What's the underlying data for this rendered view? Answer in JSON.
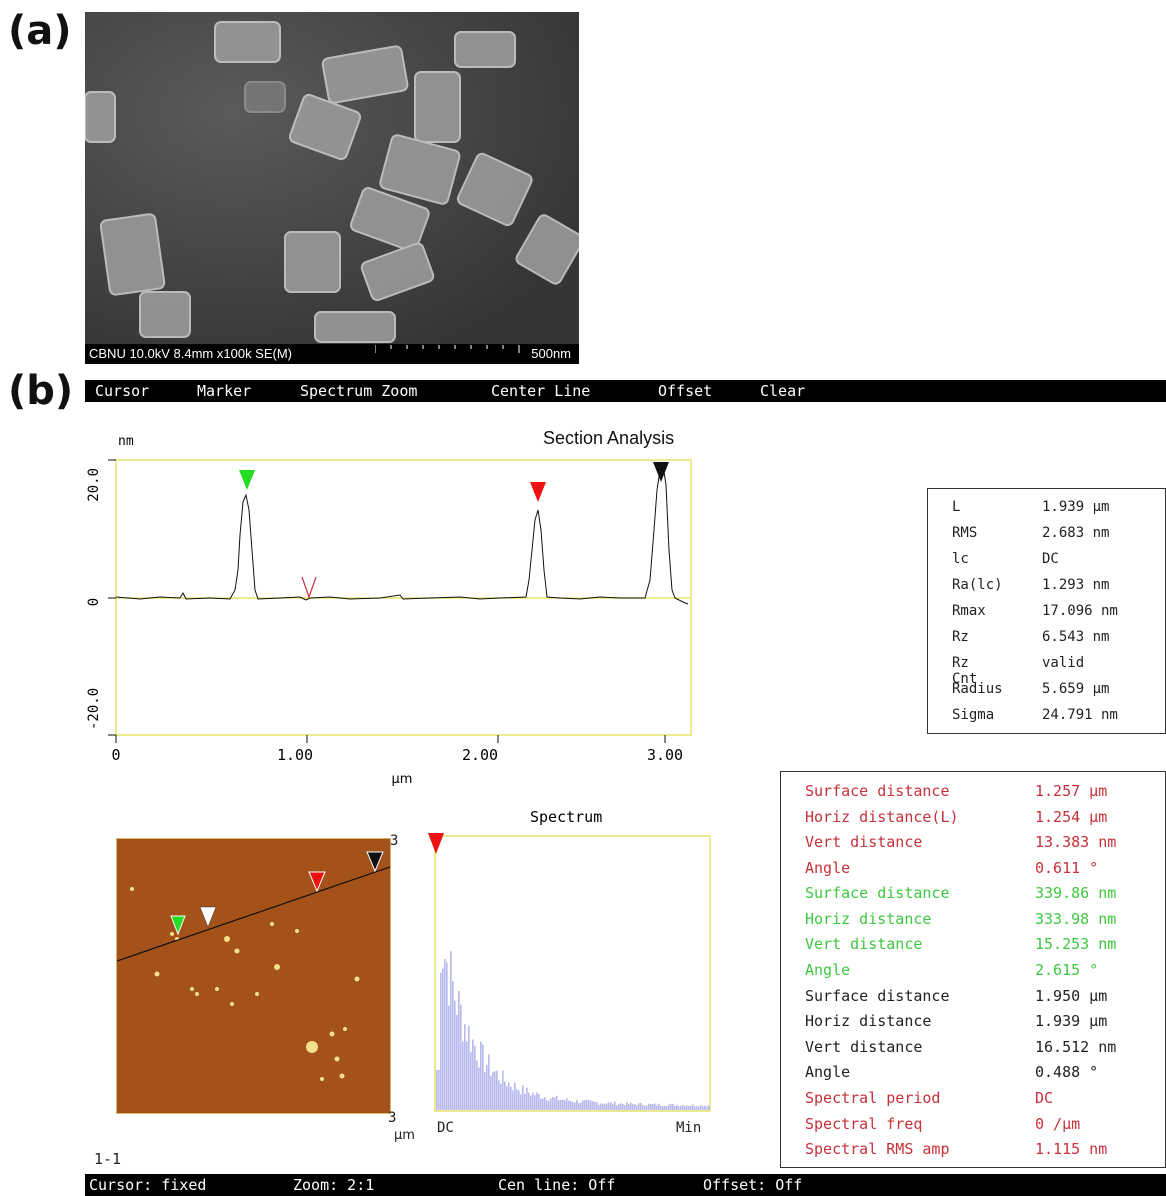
{
  "panels": {
    "a": "(a)",
    "b": "(b)"
  },
  "sem": {
    "info": "CBNU 10.0kV 8.4mm x100k SE(M)",
    "scale": "500nm"
  },
  "menu": [
    "Cursor",
    "Marker",
    "Spectrum Zoom",
    "Center Line",
    "Offset",
    "Clear"
  ],
  "section": {
    "title": "Section Analysis",
    "y_unit": "nm",
    "x_unit": "µm",
    "y_ticks": [
      "20.0",
      "0",
      "-20.0"
    ],
    "x_ticks": [
      "0",
      "1.00",
      "2.00",
      "3.00"
    ]
  },
  "stats": [
    {
      "k": "L",
      "v": "1.939 µm"
    },
    {
      "k": "RMS",
      "v": "2.683 nm"
    },
    {
      "k": "lc",
      "v": "DC"
    },
    {
      "k": "Ra(lc)",
      "v": "1.293 nm"
    },
    {
      "k": "Rmax",
      "v": "17.096 nm"
    },
    {
      "k": "Rz",
      "v": "6.543 nm"
    },
    {
      "k": "Rz Cnt",
      "v": "valid"
    },
    {
      "k": "Radius",
      "v": "5.659 µm"
    },
    {
      "k": "Sigma",
      "v": "24.791 nm"
    }
  ],
  "measurements": [
    {
      "k": "Surface distance",
      "v": "1.257 µm",
      "c": "red"
    },
    {
      "k": "Horiz distance(L)",
      "v": "1.254 µm",
      "c": "red"
    },
    {
      "k": "Vert distance",
      "v": "13.383 nm",
      "c": "red"
    },
    {
      "k": "Angle",
      "v": "0.611 °",
      "c": "red"
    },
    {
      "k": "Surface distance",
      "v": "339.86 nm",
      "c": "green"
    },
    {
      "k": "Horiz distance",
      "v": "333.98 nm",
      "c": "green"
    },
    {
      "k": "Vert distance",
      "v": "15.253 nm",
      "c": "green"
    },
    {
      "k": "Angle",
      "v": "2.615 °",
      "c": "green"
    },
    {
      "k": "Surface distance",
      "v": "1.950 µm",
      "c": "black"
    },
    {
      "k": "Horiz distance",
      "v": "1.939 µm",
      "c": "black"
    },
    {
      "k": "Vert distance",
      "v": "16.512 nm",
      "c": "black"
    },
    {
      "k": "Angle",
      "v": "0.488 °",
      "c": "black"
    },
    {
      "k": "Spectral period",
      "v": "DC",
      "c": "red"
    },
    {
      "k": "Spectral freq",
      "v": "0 /µm",
      "c": "red"
    },
    {
      "k": "Spectral RMS amp",
      "v": "1.115 nm",
      "c": "red"
    }
  ],
  "afm": {
    "top_label": "3",
    "bottom_label": "3",
    "unit": "µm"
  },
  "spectrum": {
    "title": "Spectrum",
    "left_label": "DC",
    "right_label": "Min"
  },
  "image_index": "1-1",
  "status": [
    {
      "label": "Cursor: fixed"
    },
    {
      "label": "Zoom: 2:1"
    },
    {
      "label": "Cen line: Off"
    },
    {
      "label": "Offset: Off"
    }
  ],
  "colors": {
    "green_marker": "#22dd22",
    "red_marker": "#ee1111",
    "black_marker": "#111111",
    "afm_bg": "#a4521a",
    "spectrum_fill": "#b8b8f0"
  }
}
